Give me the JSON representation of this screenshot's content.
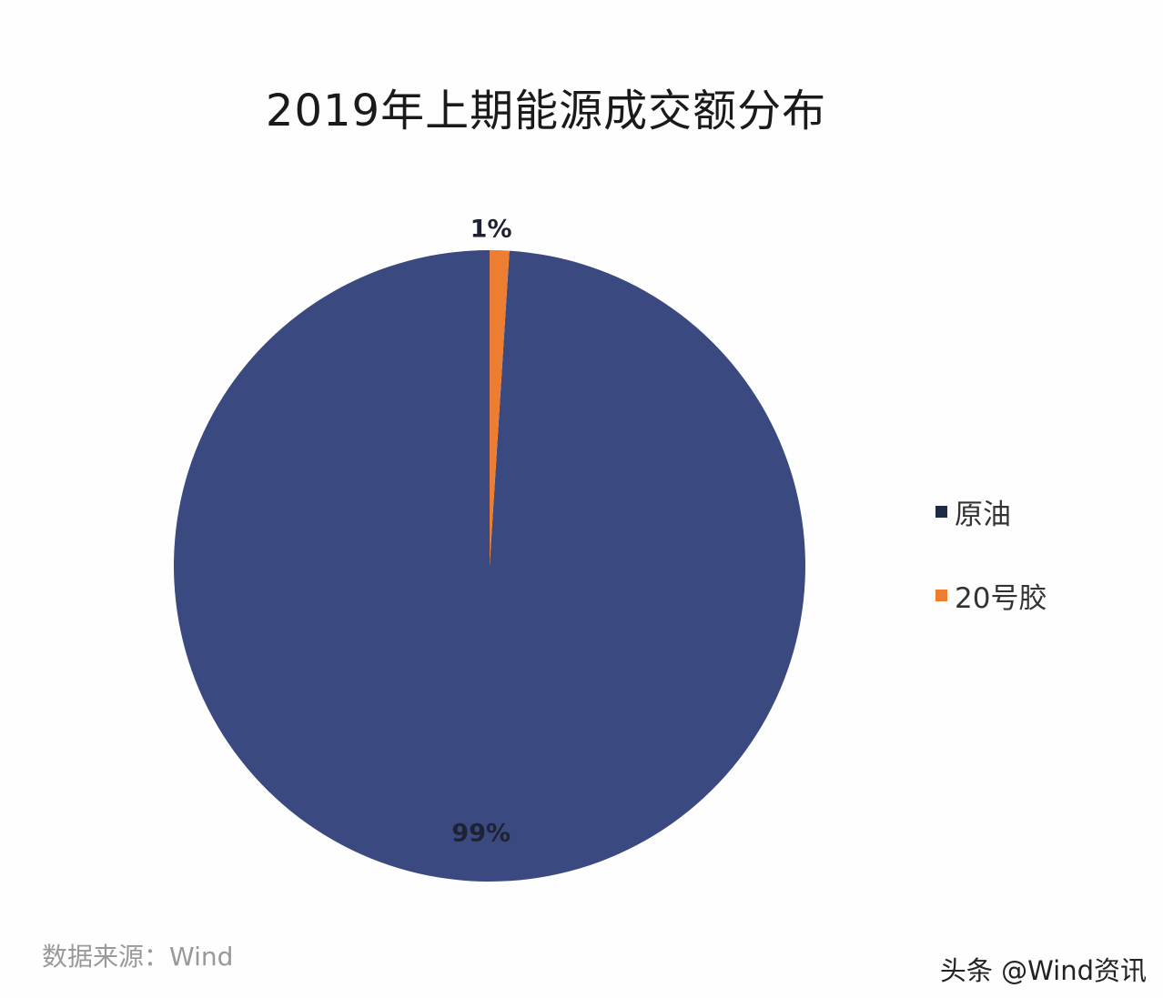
{
  "chart_data": {
    "type": "pie",
    "title": "2019年上期能源成交额分布",
    "slices": [
      {
        "name": "原油",
        "value": 99,
        "label": "99%",
        "color": "#3a4a80"
      },
      {
        "name": "20号胶",
        "value": 1,
        "label": "1%",
        "color": "#ed7d31"
      }
    ],
    "start_angle_deg": 0,
    "direction": "counterclockwise",
    "legend_position": "right"
  },
  "footer": {
    "source": "数据来源：Wind",
    "watermark": "头条 @Wind资讯"
  }
}
